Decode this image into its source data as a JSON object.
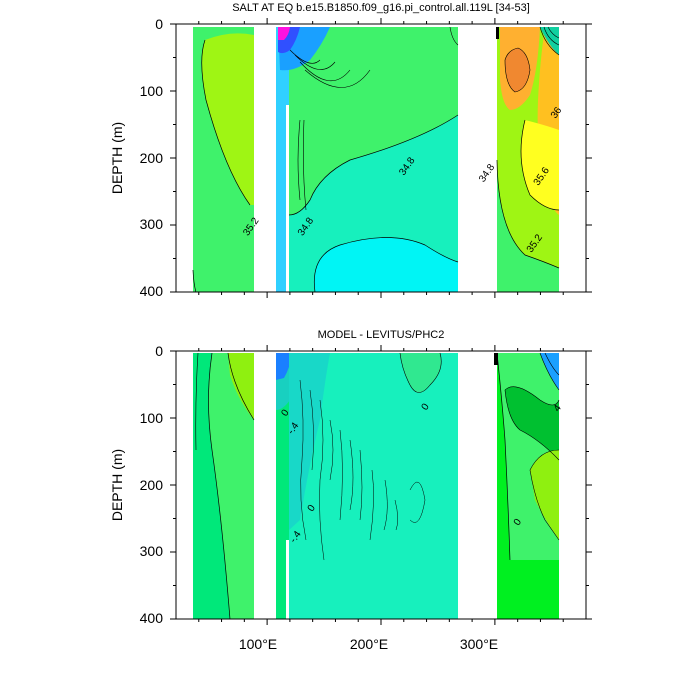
{
  "chart_data": [
    {
      "type": "heatmap",
      "title": "SALT AT EQ b.e15.B1850.f09_g16.pi_control.all.119L [34-53]",
      "xlabel": "",
      "ylabel": "DEPTH (m)",
      "xlim": [
        20,
        380
      ],
      "ylim": [
        400,
        0
      ],
      "xticks": [
        100,
        200,
        300
      ],
      "xtick_labels": [
        "100°E",
        "200°E",
        "300°E"
      ],
      "yticks": [
        0,
        100,
        200,
        300,
        400
      ],
      "ytick_labels": [
        "0",
        "100",
        "200",
        "300",
        "400"
      ],
      "contour_labels": [
        {
          "text": "34.8",
          "x": 225,
          "y": 215
        },
        {
          "text": "34.8",
          "x": 295,
          "y": 225
        },
        {
          "text": "34.8",
          "x": 136,
          "y": 305
        },
        {
          "text": "35.2",
          "x": 88,
          "y": 305
        },
        {
          "text": "36",
          "x": 356,
          "y": 135
        },
        {
          "text": "35.6",
          "x": 343,
          "y": 230
        },
        {
          "text": "35.2",
          "x": 337,
          "y": 330
        }
      ]
    },
    {
      "type": "heatmap",
      "title": "MODEL - LEVITUS/PHC2",
      "xlabel": "",
      "ylabel": "DEPTH (m)",
      "xlim": [
        20,
        380
      ],
      "ylim": [
        400,
        0
      ],
      "xticks": [
        100,
        200,
        300
      ],
      "xtick_labels": [
        "100°E",
        "200°E",
        "300°E"
      ],
      "yticks": [
        0,
        100,
        200,
        300,
        400
      ],
      "ytick_labels": [
        "0",
        "100",
        "200",
        "300",
        "400"
      ],
      "contour_labels": [
        {
          "text": "0",
          "x": 118,
          "y": 95
        },
        {
          "text": "-.4",
          "x": 125,
          "y": 118
        },
        {
          "text": "0",
          "x": 141,
          "y": 237
        },
        {
          "text": "-.4",
          "x": 127,
          "y": 280
        },
        {
          "text": "0",
          "x": 241,
          "y": 86
        },
        {
          "text": "4",
          "x": 357,
          "y": 88
        },
        {
          "text": "0",
          "x": 322,
          "y": 258
        }
      ]
    }
  ]
}
